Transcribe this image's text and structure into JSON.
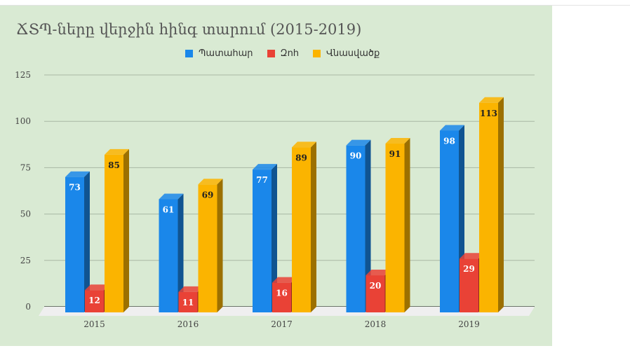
{
  "chart_data": {
    "type": "bar",
    "style": "3d-clustered-column",
    "title": "ՃՏՊ-ները վերջին հինգ տարում (2015-2019)",
    "categories": [
      "2015",
      "2016",
      "2017",
      "2018",
      "2019"
    ],
    "series": [
      {
        "name": "Պատահար",
        "color": "#1a87ea",
        "values": [
          73,
          61,
          77,
          90,
          98
        ]
      },
      {
        "name": "Զոհ",
        "color": "#e94236",
        "values": [
          12,
          11,
          16,
          20,
          29
        ]
      },
      {
        "name": "Վնասվածք",
        "color": "#fbb400",
        "values": [
          85,
          69,
          89,
          91,
          113
        ]
      }
    ],
    "y_ticks": [
      "0",
      "25",
      "50",
      "75",
      "100",
      "125"
    ],
    "ylim": [
      0,
      125
    ],
    "grid": true,
    "legend_position": "top-center",
    "background": "#d9ead3"
  }
}
